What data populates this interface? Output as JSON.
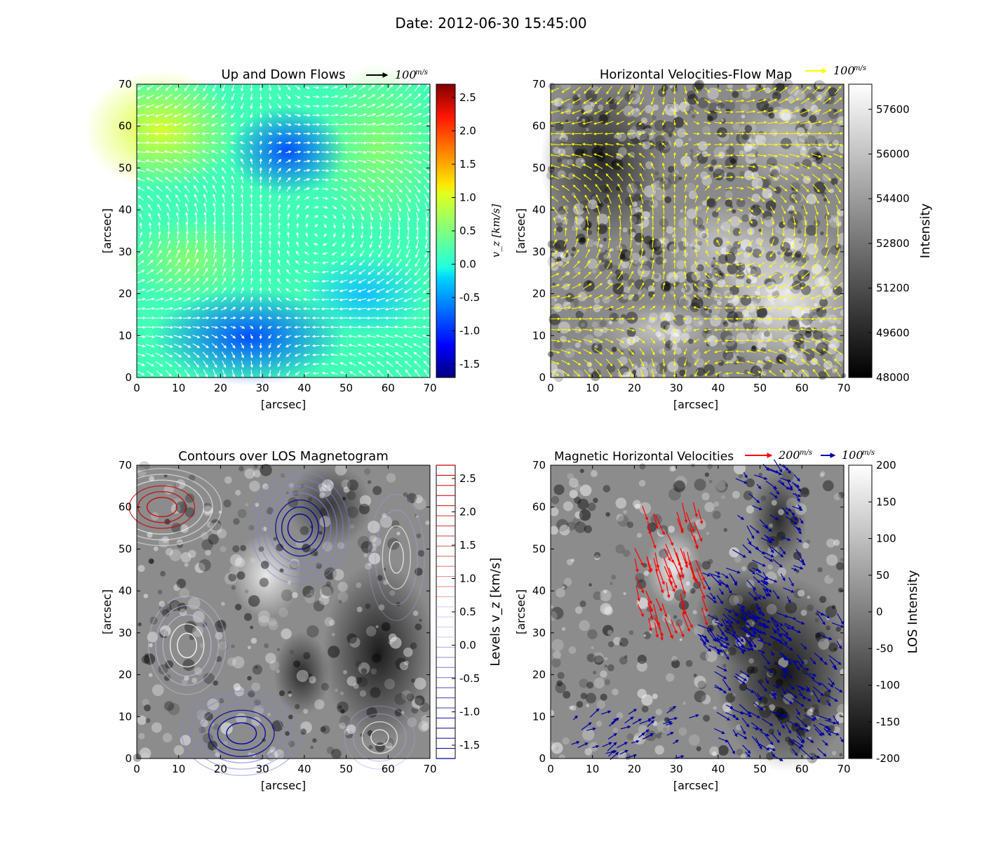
{
  "suptitle": "Date: 2012-06-30 15:45:00",
  "chart_data": [
    {
      "type": "heatmap",
      "title": "Up and Down Flows",
      "xlabel": "[arcsec]",
      "ylabel": "[arcsec]",
      "xlim": [
        0,
        70
      ],
      "ylim": [
        0,
        70
      ],
      "xticks": [
        "0",
        "10",
        "20",
        "30",
        "40",
        "50",
        "60",
        "70"
      ],
      "yticks": [
        "0",
        "10",
        "20",
        "30",
        "40",
        "50",
        "60",
        "70"
      ],
      "quiver_key": "100",
      "quiver_key_unit": "m/s",
      "quiver_color": "#ffffff",
      "colormap": "jet",
      "colorbar_label": "v_z [km/s]",
      "colorbar_range": [
        -1.7,
        2.7
      ],
      "colorbar_ticks": [
        "2.5",
        "2.0",
        "1.5",
        "1.0",
        "0.5",
        "0.0",
        "-0.5",
        "-1.0",
        "-1.5"
      ]
    },
    {
      "type": "heatmap",
      "title": "Horizontal Velocities-Flow Map",
      "xlabel": "[arcsec]",
      "ylabel": "[arcsec]",
      "xlim": [
        0,
        70
      ],
      "ylim": [
        0,
        70
      ],
      "xticks": [
        "0",
        "10",
        "20",
        "30",
        "40",
        "50",
        "60",
        "70"
      ],
      "yticks": [
        "0",
        "10",
        "20",
        "30",
        "40",
        "50",
        "60",
        "70"
      ],
      "quiver_key": "100",
      "quiver_key_unit": "m/s",
      "quiver_color": "#ffff00",
      "colormap": "gray",
      "colorbar_label": "Intensity",
      "colorbar_range": [
        48000,
        58500
      ],
      "colorbar_ticks": [
        "57600",
        "56000",
        "54400",
        "52800",
        "51200",
        "49600",
        "48000"
      ]
    },
    {
      "type": "heatmap",
      "title": "Contours over LOS Magnetogram",
      "xlabel": "[arcsec]",
      "ylabel": "[arcsec]",
      "xlim": [
        0,
        70
      ],
      "ylim": [
        0,
        70
      ],
      "xticks": [
        "0",
        "10",
        "20",
        "30",
        "40",
        "50",
        "60",
        "70"
      ],
      "yticks": [
        "0",
        "10",
        "20",
        "30",
        "40",
        "50",
        "60",
        "70"
      ],
      "colormap": "gray",
      "contour_colors": [
        "#0000aa",
        "#ffffff",
        "#cc0000"
      ],
      "colorbar_label": "Levels v_z [km/s]",
      "colorbar_range": [
        -1.7,
        2.7
      ],
      "colorbar_ticks": [
        "2.5",
        "2.0",
        "1.5",
        "1.0",
        "0.5",
        "0.0",
        "-0.5",
        "-1.0",
        "-1.5"
      ]
    },
    {
      "type": "heatmap",
      "title": "Magnetic Horizontal Velocities",
      "xlabel": "[arcsec]",
      "ylabel": "[arcsec]",
      "xlim": [
        0,
        70
      ],
      "ylim": [
        0,
        70
      ],
      "xticks": [
        "0",
        "10",
        "20",
        "30",
        "40",
        "50",
        "60",
        "70"
      ],
      "yticks": [
        "0",
        "10",
        "20",
        "30",
        "40",
        "50",
        "60",
        "70"
      ],
      "quiver_keys": [
        {
          "value": "200",
          "unit": "m/s",
          "color": "#ff0000"
        },
        {
          "value": "100",
          "unit": "m/s",
          "color": "#0000aa"
        }
      ],
      "colormap": "gray",
      "colorbar_label": "LOS Intensity",
      "colorbar_range": [
        -200,
        200
      ],
      "colorbar_ticks": [
        "200",
        "150",
        "100",
        "50",
        "0",
        "-50",
        "-100",
        "-150",
        "-200"
      ]
    }
  ]
}
